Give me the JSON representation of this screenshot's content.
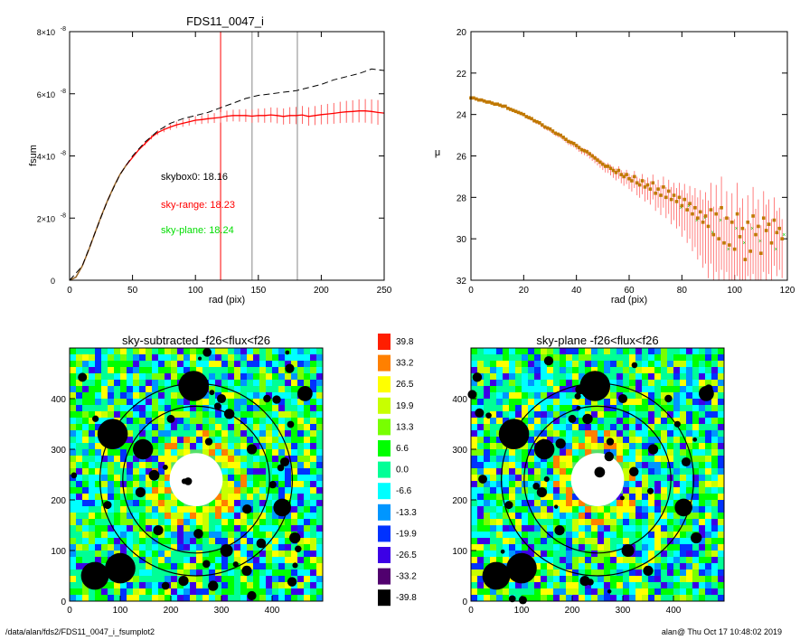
{
  "footer": {
    "path": "/data/alan/fds2/FDS11_0047_i_fsumplot2",
    "user_time": "alan@  Thu Oct 17 10:48:02 2019"
  },
  "colors": {
    "fsum_line": "#8b6f2a",
    "sky_range": "#ff0000",
    "sky_plane": "#00dd00",
    "contour": "#000000"
  },
  "chart_data": [
    {
      "type": "line",
      "title": "FDS11_0047_i",
      "xlabel": "rad (pix)",
      "ylabel": "fsum",
      "xlim": [
        0,
        250
      ],
      "ylim": [
        0,
        8e-08
      ],
      "xticks": [
        "0",
        "50",
        "100",
        "150",
        "200",
        "250"
      ],
      "yticks": [
        {
          "value": 0,
          "mantissa": "0",
          "exp": ""
        },
        {
          "value": 2e-08,
          "mantissa": "2×10",
          "exp": "-8"
        },
        {
          "value": 4e-08,
          "mantissa": "4×10",
          "exp": "-8"
        },
        {
          "value": 6e-08,
          "mantissa": "6×10",
          "exp": "-8"
        },
        {
          "value": 8e-08,
          "mantissa": "8×10",
          "exp": "-8"
        }
      ],
      "vlines": [
        {
          "x": 120,
          "color": "#ff0000"
        },
        {
          "x": 145,
          "color": "#888888"
        },
        {
          "x": 181,
          "color": "#888888"
        }
      ],
      "annotations": [
        {
          "text": "skybox0: 18.16",
          "color": "#000000"
        },
        {
          "text": "sky-range: 18.23",
          "color": "#ff0000"
        },
        {
          "text": "sky-plane: 18.24",
          "color": "#00dd00"
        }
      ],
      "series": [
        {
          "style": "solid-errorbars",
          "x": [
            0,
            5,
            10,
            15,
            20,
            25,
            30,
            35,
            40,
            45,
            50,
            55,
            60,
            65,
            70,
            75,
            80,
            85,
            90,
            95,
            100,
            105,
            110,
            115,
            120,
            125,
            130,
            135,
            140,
            145,
            150,
            155,
            160,
            165,
            170,
            175,
            180,
            185,
            190,
            195,
            200,
            205,
            210,
            215,
            220,
            225,
            230,
            235,
            240,
            245,
            250
          ],
          "y": [
            0,
            1e-09,
            4.5e-09,
            9.5e-09,
            1.5e-08,
            2.05e-08,
            2.55e-08,
            3e-08,
            3.4e-08,
            3.7e-08,
            3.95e-08,
            4.2e-08,
            4.4e-08,
            4.6e-08,
            4.75e-08,
            4.85e-08,
            4.93e-08,
            5e-08,
            5.05e-08,
            5.1e-08,
            5.15e-08,
            5.17e-08,
            5.2e-08,
            5.22e-08,
            5.24e-08,
            5.28e-08,
            5.3e-08,
            5.3e-08,
            5.3e-08,
            5.28e-08,
            5.3e-08,
            5.3e-08,
            5.32e-08,
            5.3e-08,
            5.27e-08,
            5.3e-08,
            5.3e-08,
            5.32e-08,
            5.27e-08,
            5.3e-08,
            5.33e-08,
            5.35e-08,
            5.37e-08,
            5.4e-08,
            5.42e-08,
            5.43e-08,
            5.45e-08,
            5.45e-08,
            5.43e-08,
            5.4e-08,
            5.38e-08
          ]
        },
        {
          "style": "dashed",
          "x": [
            0,
            10,
            20,
            30,
            40,
            50,
            60,
            70,
            80,
            90,
            100,
            110,
            120,
            130,
            140,
            150,
            160,
            170,
            180,
            190,
            200,
            210,
            220,
            230,
            240,
            250
          ],
          "y": [
            0,
            4.5e-09,
            1.5e-08,
            2.55e-08,
            3.4e-08,
            4e-08,
            4.45e-08,
            4.8e-08,
            5.05e-08,
            5.2e-08,
            5.3e-08,
            5.4e-08,
            5.55e-08,
            5.7e-08,
            5.85e-08,
            5.95e-08,
            6e-08,
            6.05e-08,
            6.1e-08,
            6.2e-08,
            6.3e-08,
            6.45e-08,
            6.55e-08,
            6.65e-08,
            6.8e-08,
            6.75e-08
          ]
        }
      ]
    },
    {
      "type": "scatter",
      "title": "",
      "xlabel": "rad (pix)",
      "ylabel": "μ",
      "xlim": [
        0,
        120
      ],
      "ylim": [
        32,
        20
      ],
      "xticks": [
        "0",
        "20",
        "40",
        "60",
        "80",
        "100",
        "120"
      ],
      "yticks": [
        "20",
        "22",
        "24",
        "26",
        "28",
        "30",
        "32"
      ],
      "x": [
        0,
        1,
        2,
        3,
        4,
        5,
        6,
        7,
        8,
        9,
        10,
        11,
        12,
        13,
        14,
        15,
        16,
        17,
        18,
        19,
        20,
        21,
        22,
        23,
        24,
        25,
        26,
        27,
        28,
        29,
        30,
        31,
        32,
        33,
        34,
        35,
        36,
        37,
        38,
        39,
        40,
        41,
        42,
        43,
        44,
        45,
        46,
        47,
        48,
        49,
        50,
        51,
        52,
        53,
        54,
        55,
        56,
        57,
        58,
        59,
        60,
        61,
        62,
        63,
        64,
        65,
        66,
        67,
        68,
        69,
        70,
        71,
        72,
        73,
        74,
        75,
        76,
        77,
        78,
        79,
        80,
        81,
        82,
        83,
        84,
        85,
        86,
        87,
        88,
        89,
        90,
        91,
        92,
        93,
        94,
        95,
        96,
        97,
        98,
        99,
        100,
        101,
        102,
        103,
        104,
        105,
        106,
        107,
        108,
        109,
        110,
        111,
        112,
        113,
        114,
        115,
        116,
        117,
        118
      ],
      "y": [
        23.2,
        23.2,
        23.25,
        23.3,
        23.3,
        23.35,
        23.4,
        23.4,
        23.45,
        23.5,
        23.5,
        23.55,
        23.6,
        23.6,
        23.7,
        23.75,
        23.8,
        23.85,
        23.9,
        23.95,
        24.0,
        24.1,
        24.15,
        24.2,
        24.3,
        24.35,
        24.4,
        24.5,
        24.6,
        24.65,
        24.7,
        24.8,
        24.9,
        24.95,
        25.0,
        25.1,
        25.2,
        25.3,
        25.35,
        25.4,
        25.5,
        25.6,
        25.7,
        25.75,
        25.8,
        25.9,
        26.0,
        26.1,
        26.2,
        26.3,
        26.4,
        26.5,
        26.5,
        26.6,
        26.7,
        26.8,
        26.7,
        26.9,
        27.0,
        26.9,
        27.1,
        27.2,
        27.0,
        27.3,
        27.4,
        27.2,
        27.5,
        27.4,
        27.6,
        27.3,
        27.8,
        27.6,
        27.9,
        27.5,
        28.0,
        27.7,
        28.1,
        27.9,
        28.2,
        28.0,
        28.4,
        28.1,
        28.6,
        28.3,
        28.8,
        28.5,
        29.0,
        28.7,
        29.2,
        28.9,
        29.4,
        28.6,
        29.8,
        28.8,
        30.0,
        28.5,
        30.2,
        29.0,
        30.3,
        29.2,
        30.5,
        28.8,
        29.9,
        29.5,
        31.0,
        29.2,
        30.6,
        28.9,
        29.8,
        29.4,
        30.7,
        29.0,
        29.6,
        29.3,
        30.2,
        29.1,
        29.7,
        29.5,
        30.0
      ],
      "err": [
        0.05,
        0.05,
        0.05,
        0.05,
        0.05,
        0.05,
        0.05,
        0.05,
        0.05,
        0.05,
        0.06,
        0.06,
        0.06,
        0.06,
        0.07,
        0.07,
        0.07,
        0.08,
        0.08,
        0.08,
        0.09,
        0.09,
        0.1,
        0.1,
        0.1,
        0.11,
        0.11,
        0.12,
        0.12,
        0.13,
        0.13,
        0.14,
        0.14,
        0.15,
        0.15,
        0.16,
        0.16,
        0.17,
        0.18,
        0.18,
        0.19,
        0.2,
        0.2,
        0.21,
        0.22,
        0.23,
        0.24,
        0.25,
        0.26,
        0.27,
        0.28,
        0.3,
        0.32,
        0.34,
        0.36,
        0.38,
        0.4,
        0.42,
        0.44,
        0.46,
        0.5,
        0.52,
        0.55,
        0.6,
        0.62,
        0.65,
        0.7,
        0.72,
        0.75,
        0.8,
        0.85,
        0.9,
        0.95,
        1.0,
        1.0,
        1.1,
        1.2,
        1.2,
        1.3,
        1.4,
        1.5,
        1.5,
        1.6,
        1.7,
        1.8,
        1.9,
        2.0,
        2.1,
        2.2,
        2.3,
        2.5,
        2.6,
        2.7,
        2.8,
        3.0,
        3.0,
        2.5,
        2.6,
        2.7,
        2.8,
        2.9,
        3.0,
        2.8,
        2.9,
        3.0,
        2.6,
        2.7,
        2.8,
        2.5,
        2.6,
        2.7,
        2.6,
        2.5,
        2.4,
        2.3,
        2.2,
        2.1,
        2.0,
        1.9
      ]
    },
    {
      "type": "heatmap",
      "title": "sky-subtracted -f26<flux<f26",
      "xlim": [
        0,
        500
      ],
      "ylim": [
        0,
        500
      ],
      "xticks": [
        "0",
        "100",
        "200",
        "300",
        "400"
      ],
      "yticks": [
        "0",
        "100",
        "200",
        "300",
        "400"
      ],
      "center": [
        250,
        240
      ],
      "circles": [
        {
          "r": 190
        },
        {
          "r": 145
        }
      ]
    },
    {
      "type": "heatmap",
      "title": "sky-plane -f26<flux<f26",
      "xlim": [
        0,
        500
      ],
      "ylim": [
        0,
        500
      ],
      "xticks": [
        "0",
        "100",
        "200",
        "300",
        "400"
      ],
      "yticks": [
        "0",
        "100",
        "200",
        "300",
        "400"
      ],
      "center": [
        250,
        240
      ],
      "circles": [
        {
          "r": 190
        },
        {
          "r": 145
        }
      ]
    },
    {
      "type": "legend-colorbar",
      "levels": [
        {
          "label": "39.8",
          "color": "#ff1e00"
        },
        {
          "label": "33.2",
          "color": "#ff8000"
        },
        {
          "label": "26.5",
          "color": "#ffff00"
        },
        {
          "label": "19.9",
          "color": "#c8ff00"
        },
        {
          "label": "13.3",
          "color": "#78ff00"
        },
        {
          "label": "6.6",
          "color": "#00ff00"
        },
        {
          "label": "0.0",
          "color": "#00ff96"
        },
        {
          "label": "-6.6",
          "color": "#00ffff"
        },
        {
          "label": "-13.3",
          "color": "#0096ff"
        },
        {
          "label": "-19.9",
          "color": "#0032ff"
        },
        {
          "label": "-26.5",
          "color": "#3c00e6"
        },
        {
          "label": "-33.2",
          "color": "#50006e"
        },
        {
          "label": "-39.8",
          "color": "#000000"
        }
      ]
    }
  ]
}
